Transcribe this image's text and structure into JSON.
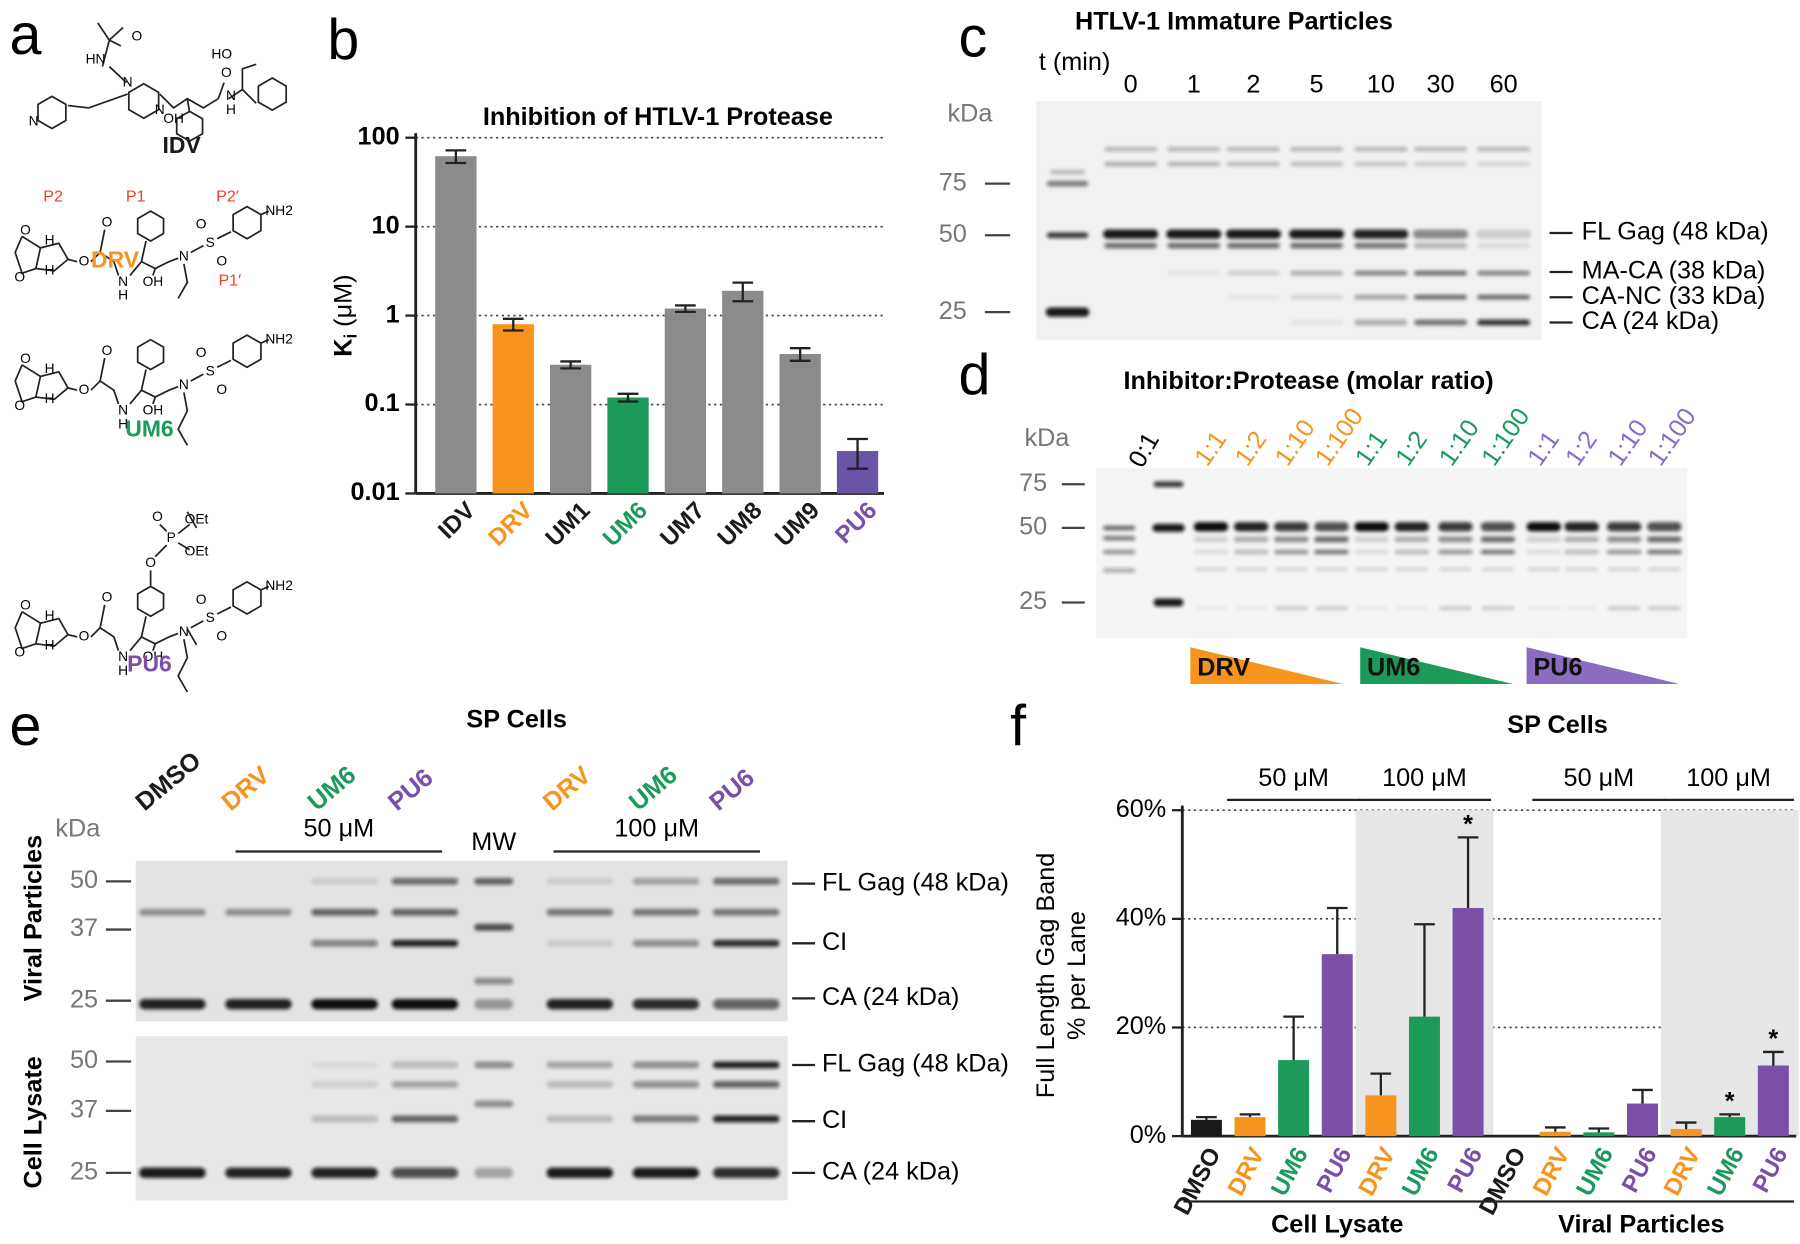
{
  "panel_labels": [
    "a",
    "b",
    "c",
    "d",
    "e",
    "f"
  ],
  "panel_a": {
    "site_labels": [
      "P2",
      "P1",
      "P2′",
      "P1′"
    ],
    "compounds": [
      {
        "name": "IDV",
        "color": "#1a1a1a",
        "atoms": [
          "HN",
          "O",
          "N",
          "N",
          "N",
          "OH",
          "HO",
          "N",
          "H",
          "O"
        ]
      },
      {
        "name": "DRV",
        "color": "#f7941d",
        "atoms": [
          "O",
          "O",
          "H",
          "H",
          "O",
          "O",
          "N",
          "H",
          "OH",
          "N",
          "S",
          "O",
          "O",
          "NH2"
        ]
      },
      {
        "name": "UM6",
        "color": "#1b9a5a",
        "atoms": [
          "O",
          "O",
          "H",
          "H",
          "O",
          "O",
          "N",
          "H",
          "OH",
          "N",
          "S",
          "O",
          "O",
          "NH2"
        ]
      },
      {
        "name": "PU6",
        "color": "#7a4fa8",
        "atoms": [
          "O",
          "O",
          "H",
          "H",
          "O",
          "O",
          "N",
          "H",
          "OH",
          "N",
          "S",
          "O",
          "O",
          "NH2",
          "O",
          "P",
          "O",
          "OEt",
          "OEt"
        ]
      }
    ]
  },
  "chart_data": [
    {
      "type": "bar",
      "title": "Inhibition of HTLV-1 Protease",
      "y_label": [
        "K",
        "i",
        "(μM)"
      ],
      "categories": [
        "IDV",
        "DRV",
        "UM1",
        "UM6",
        "UM7",
        "UM8",
        "UM9",
        "PU6"
      ],
      "values": [
        62,
        0.8,
        0.28,
        0.12,
        1.2,
        1.9,
        0.37,
        0.03
      ],
      "errors": [
        10,
        0.12,
        0.025,
        0.012,
        0.1,
        0.45,
        0.06,
        0.011
      ],
      "colors": [
        "#8a8b8d",
        "#f7941d",
        "#8a8b8d",
        "#1b9a5a",
        "#8a8b8d",
        "#8a8b8d",
        "#8a8b8d",
        "#6a54a6"
      ],
      "label_colors": [
        "#1a1a1a",
        "#f7941d",
        "#1a1a1a",
        "#1b9a5a",
        "#1a1a1a",
        "#1a1a1a",
        "#1a1a1a",
        "#7a4fa8"
      ],
      "ylim": [
        0.01,
        100
      ],
      "yticks": [
        0.01,
        0.1,
        1,
        10,
        100
      ],
      "log_scale": true,
      "grid": true
    },
    {
      "type": "bar",
      "title": "SP Cells",
      "y_label": [
        "Full Length Gag Band",
        "% per Lane"
      ],
      "categories": [
        "DMSO",
        "DRV",
        "UM6",
        "PU6",
        "DRV",
        "UM6",
        "PU6",
        "DMSO",
        "DRV",
        "UM6",
        "PU6",
        "DRV",
        "UM6",
        "PU6"
      ],
      "values": [
        3,
        3.5,
        14,
        33.5,
        7.5,
        22,
        42,
        0,
        0.8,
        0.7,
        6,
        1.3,
        3.5,
        13
      ],
      "errors": [
        0.5,
        0.5,
        8,
        8.5,
        4,
        17,
        13,
        0,
        0.8,
        0.7,
        2.5,
        1.2,
        0.5,
        2.5
      ],
      "significance": [
        null,
        null,
        null,
        null,
        null,
        null,
        "*",
        null,
        null,
        null,
        null,
        null,
        "*",
        "*"
      ],
      "colors": [
        "#1a1a1a",
        "#f7941d",
        "#1b9a5a",
        "#7a4fa8",
        "#f7941d",
        "#1b9a5a",
        "#7a4fa8",
        "#1a1a1a",
        "#f7941d",
        "#1b9a5a",
        "#7a4fa8",
        "#f7941d",
        "#1b9a5a",
        "#7a4fa8"
      ],
      "group_labels": [
        "50 μM",
        "100 μM",
        "50 μM",
        "100 μM"
      ],
      "sample_labels": [
        "Cell Lysate",
        "Viral Particles"
      ],
      "ylim": [
        0,
        60
      ],
      "yticks": [
        {
          "value": 0,
          "label": "0%"
        },
        {
          "value": 20,
          "label": "20%"
        },
        {
          "value": 40,
          "label": "40%"
        },
        {
          "value": 60,
          "label": "60%"
        }
      ],
      "grid": true
    }
  ],
  "panel_c": {
    "title": "HTLV-1 Immature Particles",
    "time_label": "t (min)",
    "times": [
      "0",
      "1",
      "2",
      "5",
      "10",
      "30",
      "60"
    ],
    "kda": "kDa",
    "markers": [
      "75",
      "50",
      "25"
    ],
    "bands": [
      "FL Gag (48 kDa)",
      "MA-CA (38 kDa)",
      "CA-NC (33 kDa)",
      "CA (24 kDa)"
    ]
  },
  "panel_d": {
    "title": "Inhibitor:Protease (molar ratio)",
    "kda": "kDa",
    "markers": [
      "75",
      "50",
      "25"
    ],
    "control": "0:1",
    "groups": [
      {
        "name": "DRV",
        "color": "#f7941d",
        "ratios": [
          "1:1",
          "1:2",
          "1:10",
          "1:100"
        ]
      },
      {
        "name": "UM6",
        "color": "#1b9a5a",
        "ratios": [
          "1:1",
          "1:2",
          "1:10",
          "1:100"
        ]
      },
      {
        "name": "PU6",
        "color": "#8a6cc0",
        "ratios": [
          "1:1",
          "1:2",
          "1:10",
          "1:100"
        ]
      }
    ]
  },
  "panel_e": {
    "title": "SP Cells",
    "kda": "kDa",
    "mw": "MW",
    "concentrations": [
      "50 μM",
      "100 μM"
    ],
    "lanes": [
      {
        "name": "DMSO",
        "color": "#1a1a1a"
      },
      {
        "name": "DRV",
        "color": "#f7941d"
      },
      {
        "name": "UM6",
        "color": "#1b9a5a"
      },
      {
        "name": "PU6",
        "color": "#7a4fa8"
      },
      {
        "name": "DRV",
        "color": "#f7941d"
      },
      {
        "name": "UM6",
        "color": "#1b9a5a"
      },
      {
        "name": "PU6",
        "color": "#7a4fa8"
      }
    ],
    "blots": [
      {
        "name": "Viral Particles",
        "markers": [
          "50",
          "37",
          "25"
        ],
        "bands": [
          "FL Gag (48 kDa)",
          "CI",
          "CA (24 kDa)"
        ]
      },
      {
        "name": "Cell Lysate",
        "markers": [
          "50",
          "37",
          "25"
        ],
        "bands": [
          "FL Gag (48 kDa)",
          "CI",
          "CA (24 kDa)"
        ]
      }
    ]
  }
}
